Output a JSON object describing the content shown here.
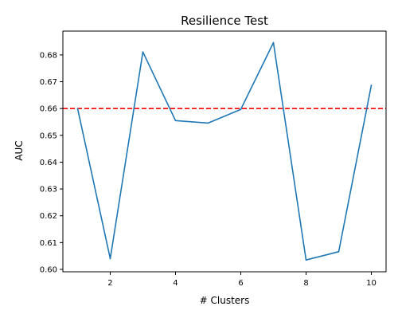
{
  "chart_data": {
    "type": "line",
    "title": "Resilience Test",
    "xlabel": "# Clusters",
    "ylabel": "AUC",
    "xlim": [
      0.55,
      10.45
    ],
    "ylim": [
      0.5991,
      0.6889
    ],
    "xticks": [
      2,
      4,
      6,
      8,
      10
    ],
    "yticks": [
      0.6,
      0.61,
      0.62,
      0.63,
      0.64,
      0.65,
      0.66,
      0.67,
      0.68
    ],
    "ytick_labels": [
      "0.60",
      "0.61",
      "0.62",
      "0.63",
      "0.64",
      "0.65",
      "0.66",
      "0.67",
      "0.68"
    ],
    "grid": false,
    "series": [
      {
        "x": [
          1,
          2,
          3,
          4,
          5,
          6,
          7,
          8,
          9,
          10
        ],
        "y": [
          0.66,
          0.604,
          0.6811,
          0.6555,
          0.6546,
          0.6597,
          0.6846,
          0.6035,
          0.6066,
          0.6687
        ],
        "color": "#1f77b4"
      }
    ],
    "reference_line": {
      "orientation": "horizontal",
      "y": 0.66,
      "color": "#ff0000",
      "style": "dashed"
    }
  }
}
